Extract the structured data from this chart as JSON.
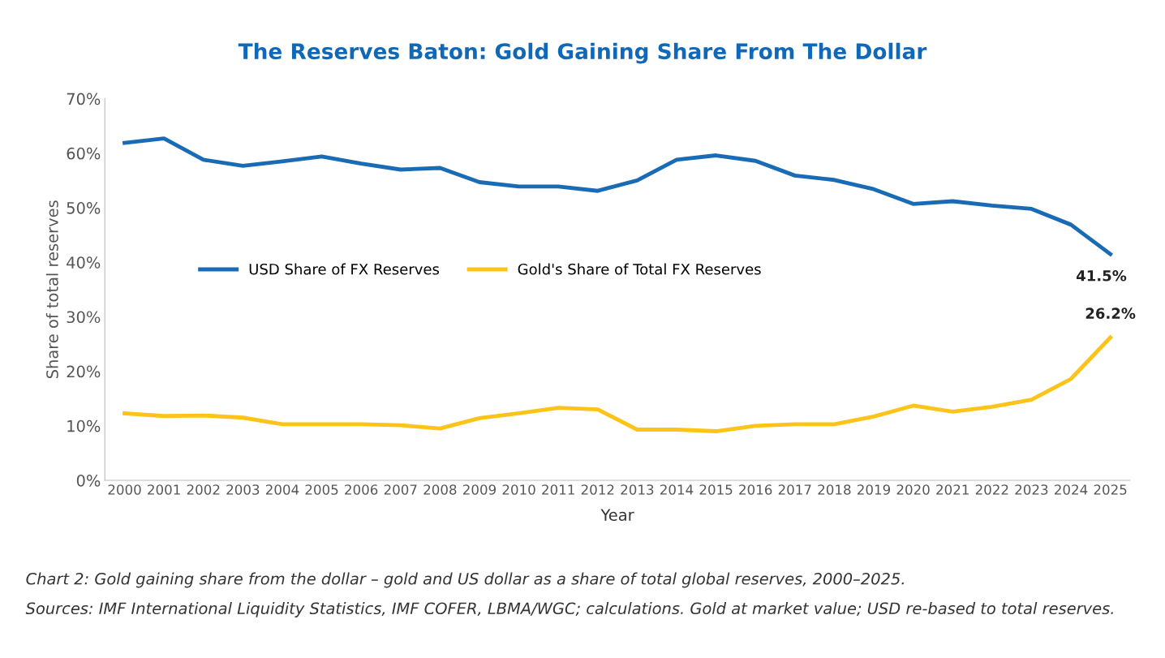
{
  "chart_data": {
    "type": "line",
    "title": "The Reserves Baton: Gold Gaining Share From The Dollar",
    "xlabel": "Year",
    "ylabel": "Share of total reserves",
    "categories": [
      "2000",
      "2001",
      "2002",
      "2003",
      "2004",
      "2005",
      "2006",
      "2007",
      "2008",
      "2009",
      "2010",
      "2011",
      "2012",
      "2013",
      "2014",
      "2015",
      "2016",
      "2017",
      "2018",
      "2019",
      "2020",
      "2021",
      "2022",
      "2023",
      "2024",
      "2025"
    ],
    "series": [
      {
        "name": "USD Share of FX Reserves",
        "color": "#1a6bb5",
        "values": [
          61.9,
          62.7,
          58.8,
          57.7,
          58.5,
          59.4,
          58.1,
          57.0,
          57.3,
          54.7,
          53.9,
          53.9,
          53.1,
          55.0,
          58.8,
          59.6,
          58.6,
          55.9,
          55.1,
          53.4,
          50.7,
          51.2,
          50.4,
          49.8,
          46.9,
          41.5
        ],
        "value_labels": [
          null,
          null,
          null,
          null,
          null,
          null,
          null,
          null,
          null,
          null,
          null,
          null,
          null,
          null,
          null,
          null,
          null,
          null,
          null,
          null,
          null,
          null,
          null,
          null,
          null,
          "41.5%"
        ]
      },
      {
        "name": "Gold's Share of Total FX Reserves",
        "color": "#fcc419",
        "values": [
          12.3,
          11.8,
          11.9,
          11.5,
          10.3,
          10.3,
          10.3,
          10.1,
          9.5,
          11.4,
          12.3,
          13.3,
          13.0,
          9.3,
          9.3,
          9.0,
          10.0,
          10.3,
          10.3,
          11.7,
          13.7,
          12.6,
          13.5,
          14.8,
          18.6,
          26.2
        ],
        "value_labels": [
          null,
          null,
          null,
          null,
          null,
          null,
          null,
          null,
          null,
          null,
          null,
          null,
          null,
          null,
          null,
          null,
          null,
          null,
          null,
          null,
          null,
          null,
          null,
          null,
          null,
          "26.2%"
        ]
      }
    ],
    "ylim": [
      0,
      70
    ],
    "yticks": [
      {
        "value": 0,
        "label": "0%"
      },
      {
        "value": 10,
        "label": "10%"
      },
      {
        "value": 20,
        "label": "20%"
      },
      {
        "value": 30,
        "label": "30%"
      },
      {
        "value": 40,
        "label": "40%"
      },
      {
        "value": 50,
        "label": "50%"
      },
      {
        "value": 60,
        "label": "60%"
      },
      {
        "value": 70,
        "label": "70%"
      }
    ],
    "legend": "left",
    "annotations": [
      "Chart 2: Gold gaining share from the dollar – gold and US dollar as a share of total global reserves, 2000–2025.",
      "Sources: IMF International Liquidity Statistics, IMF COFER, LBMA/WGC; calculations. Gold at market value; USD re-based to total reserves."
    ]
  }
}
